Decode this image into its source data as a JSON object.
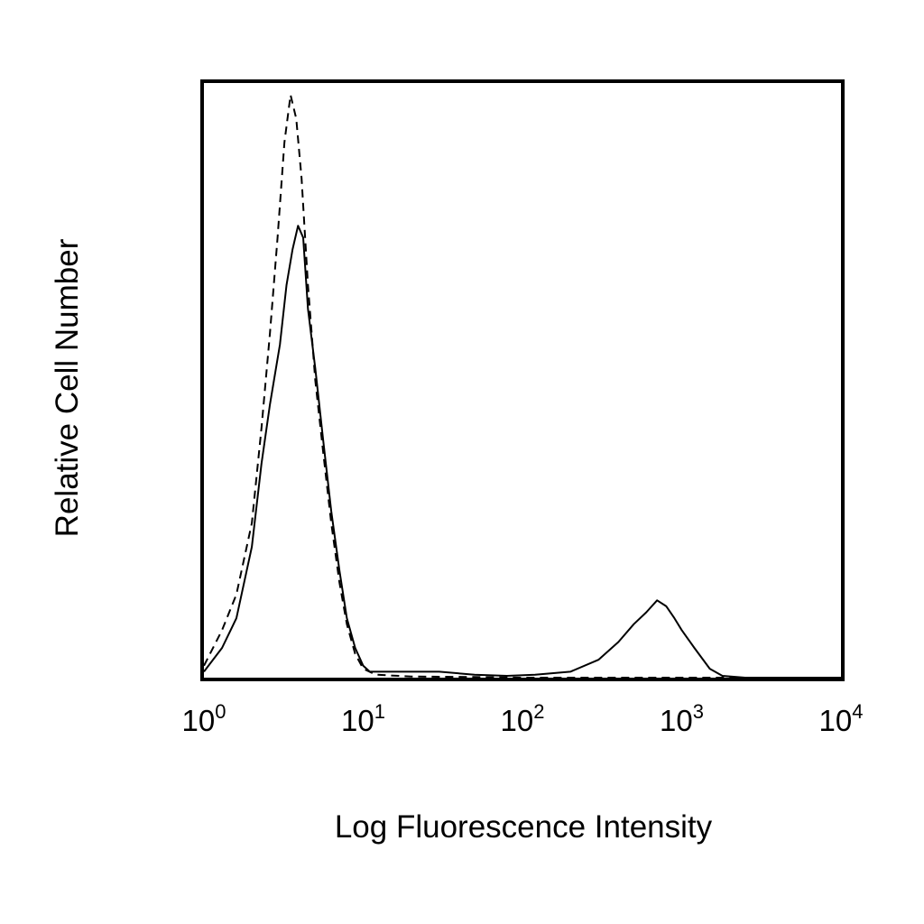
{
  "chart_data": {
    "type": "line",
    "title": "",
    "xlabel": "Log Fluorescence Intensity",
    "ylabel": "Relative Cell Number",
    "x_scale": "log",
    "xlim": [
      1,
      10000
    ],
    "ylim": [
      0,
      100
    ],
    "x_ticks": [
      {
        "value": 1,
        "base": "10",
        "exp": "0"
      },
      {
        "value": 10,
        "base": "10",
        "exp": "1"
      },
      {
        "value": 100,
        "base": "10",
        "exp": "2"
      },
      {
        "value": 1000,
        "base": "10",
        "exp": "3"
      },
      {
        "value": 10000,
        "base": "10",
        "exp": "4"
      }
    ],
    "y_ticks": [],
    "grid": false,
    "legend": "none",
    "series": [
      {
        "line_style": "solid",
        "color": "#000000",
        "x": [
          1.0,
          1.3,
          1.6,
          2.0,
          2.3,
          2.6,
          3.0,
          3.3,
          3.6,
          3.9,
          4.2,
          4.5,
          5.0,
          5.6,
          6.3,
          7.1,
          7.9,
          8.9,
          10,
          11,
          15,
          20,
          30,
          50,
          80,
          120,
          200,
          300,
          400,
          500,
          600,
          700,
          800,
          900,
          1000,
          1200,
          1500,
          1800,
          2500,
          5000,
          10000
        ],
        "y": [
          1,
          5,
          10,
          22,
          36,
          46,
          56,
          66,
          72,
          76,
          74,
          62,
          52,
          40,
          28,
          18,
          10,
          5,
          2,
          1,
          1,
          1,
          1,
          0.5,
          0.3,
          0.5,
          1,
          3,
          6,
          9,
          11,
          13,
          12,
          10,
          8,
          5,
          1.5,
          0.3,
          0,
          0,
          0
        ]
      },
      {
        "line_style": "dashed",
        "color": "#000000",
        "x": [
          1.0,
          1.3,
          1.6,
          2.0,
          2.3,
          2.6,
          2.9,
          3.2,
          3.5,
          3.8,
          4.1,
          4.5,
          5.0,
          5.6,
          6.3,
          7.1,
          7.9,
          8.9,
          10,
          12,
          20,
          50,
          100,
          200,
          500,
          1000,
          10000
        ],
        "y": [
          2,
          8,
          14,
          26,
          42,
          58,
          74,
          90,
          98,
          94,
          84,
          66,
          50,
          38,
          26,
          16,
          9,
          4,
          1.5,
          0.5,
          0.2,
          0.1,
          0,
          0,
          0,
          0,
          0
        ]
      }
    ]
  }
}
